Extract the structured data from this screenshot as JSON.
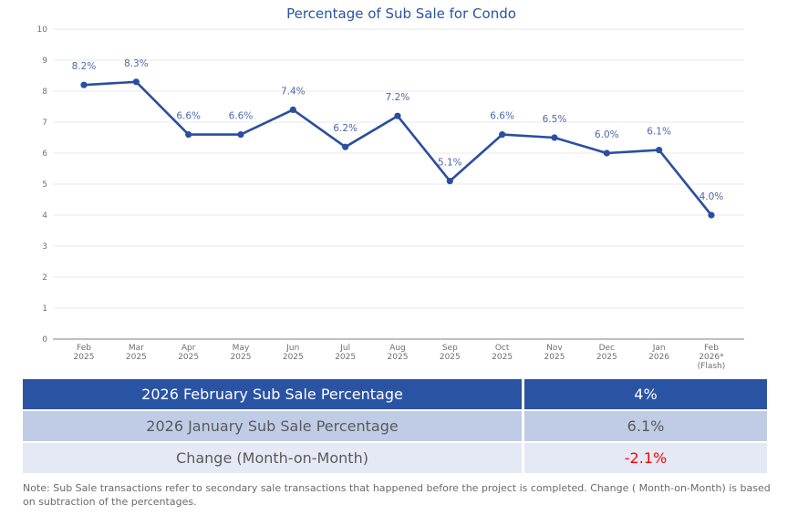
{
  "chart_data": {
    "type": "line",
    "title": "Percentage of Sub Sale for Condo",
    "xlabel": "",
    "ylabel": "",
    "ylim": [
      0,
      10
    ],
    "yticks": [
      "0",
      "1",
      "2",
      "3",
      "4",
      "5",
      "6",
      "7",
      "8",
      "9",
      "10"
    ],
    "grid": true,
    "legend": "none",
    "categories": [
      [
        "Feb",
        "2025"
      ],
      [
        "Mar",
        "2025"
      ],
      [
        "Apr",
        "2025"
      ],
      [
        "May",
        "2025"
      ],
      [
        "Jun",
        "2025"
      ],
      [
        "Jul",
        "2025"
      ],
      [
        "Aug",
        "2025"
      ],
      [
        "Sep",
        "2025"
      ],
      [
        "Oct",
        "2025"
      ],
      [
        "Nov",
        "2025"
      ],
      [
        "Dec",
        "2025"
      ],
      [
        "Jan",
        "2026"
      ],
      [
        "Feb",
        "2026*",
        "(Flash)"
      ]
    ],
    "series": [
      {
        "name": "Sub Sale Percentage",
        "color": "#2a4fa0",
        "values": [
          8.2,
          8.3,
          6.6,
          6.6,
          7.4,
          6.2,
          7.2,
          5.1,
          6.6,
          6.5,
          6.0,
          6.1,
          4.0
        ],
        "labels": [
          "8.2%",
          "8.3%",
          "6.6%",
          "6.6%",
          "7.4%",
          "6.2%",
          "7.2%",
          "5.1%",
          "6.6%",
          "6.5%",
          "6.0%",
          "6.1%",
          "4.0%"
        ]
      }
    ]
  },
  "summary": {
    "rows": [
      {
        "label": "2026 February Sub Sale Percentage",
        "value": "4%"
      },
      {
        "label": "2026 January Sub Sale Percentage",
        "value": "6.1%"
      },
      {
        "label": "Change (Month-on-Month)",
        "value": "-2.1%"
      }
    ],
    "colors": {
      "header_bg": "#2a53a4",
      "prev_bg": "#c0cce6",
      "change_bg": "#e4e9f5",
      "negative": "#ff0000"
    }
  },
  "note": {
    "text": "Note: Sub Sale transactions refer to secondary sale transactions that happened before the project is completed. Change ( Month-on-Month) is based on subtraction of the percentages."
  }
}
